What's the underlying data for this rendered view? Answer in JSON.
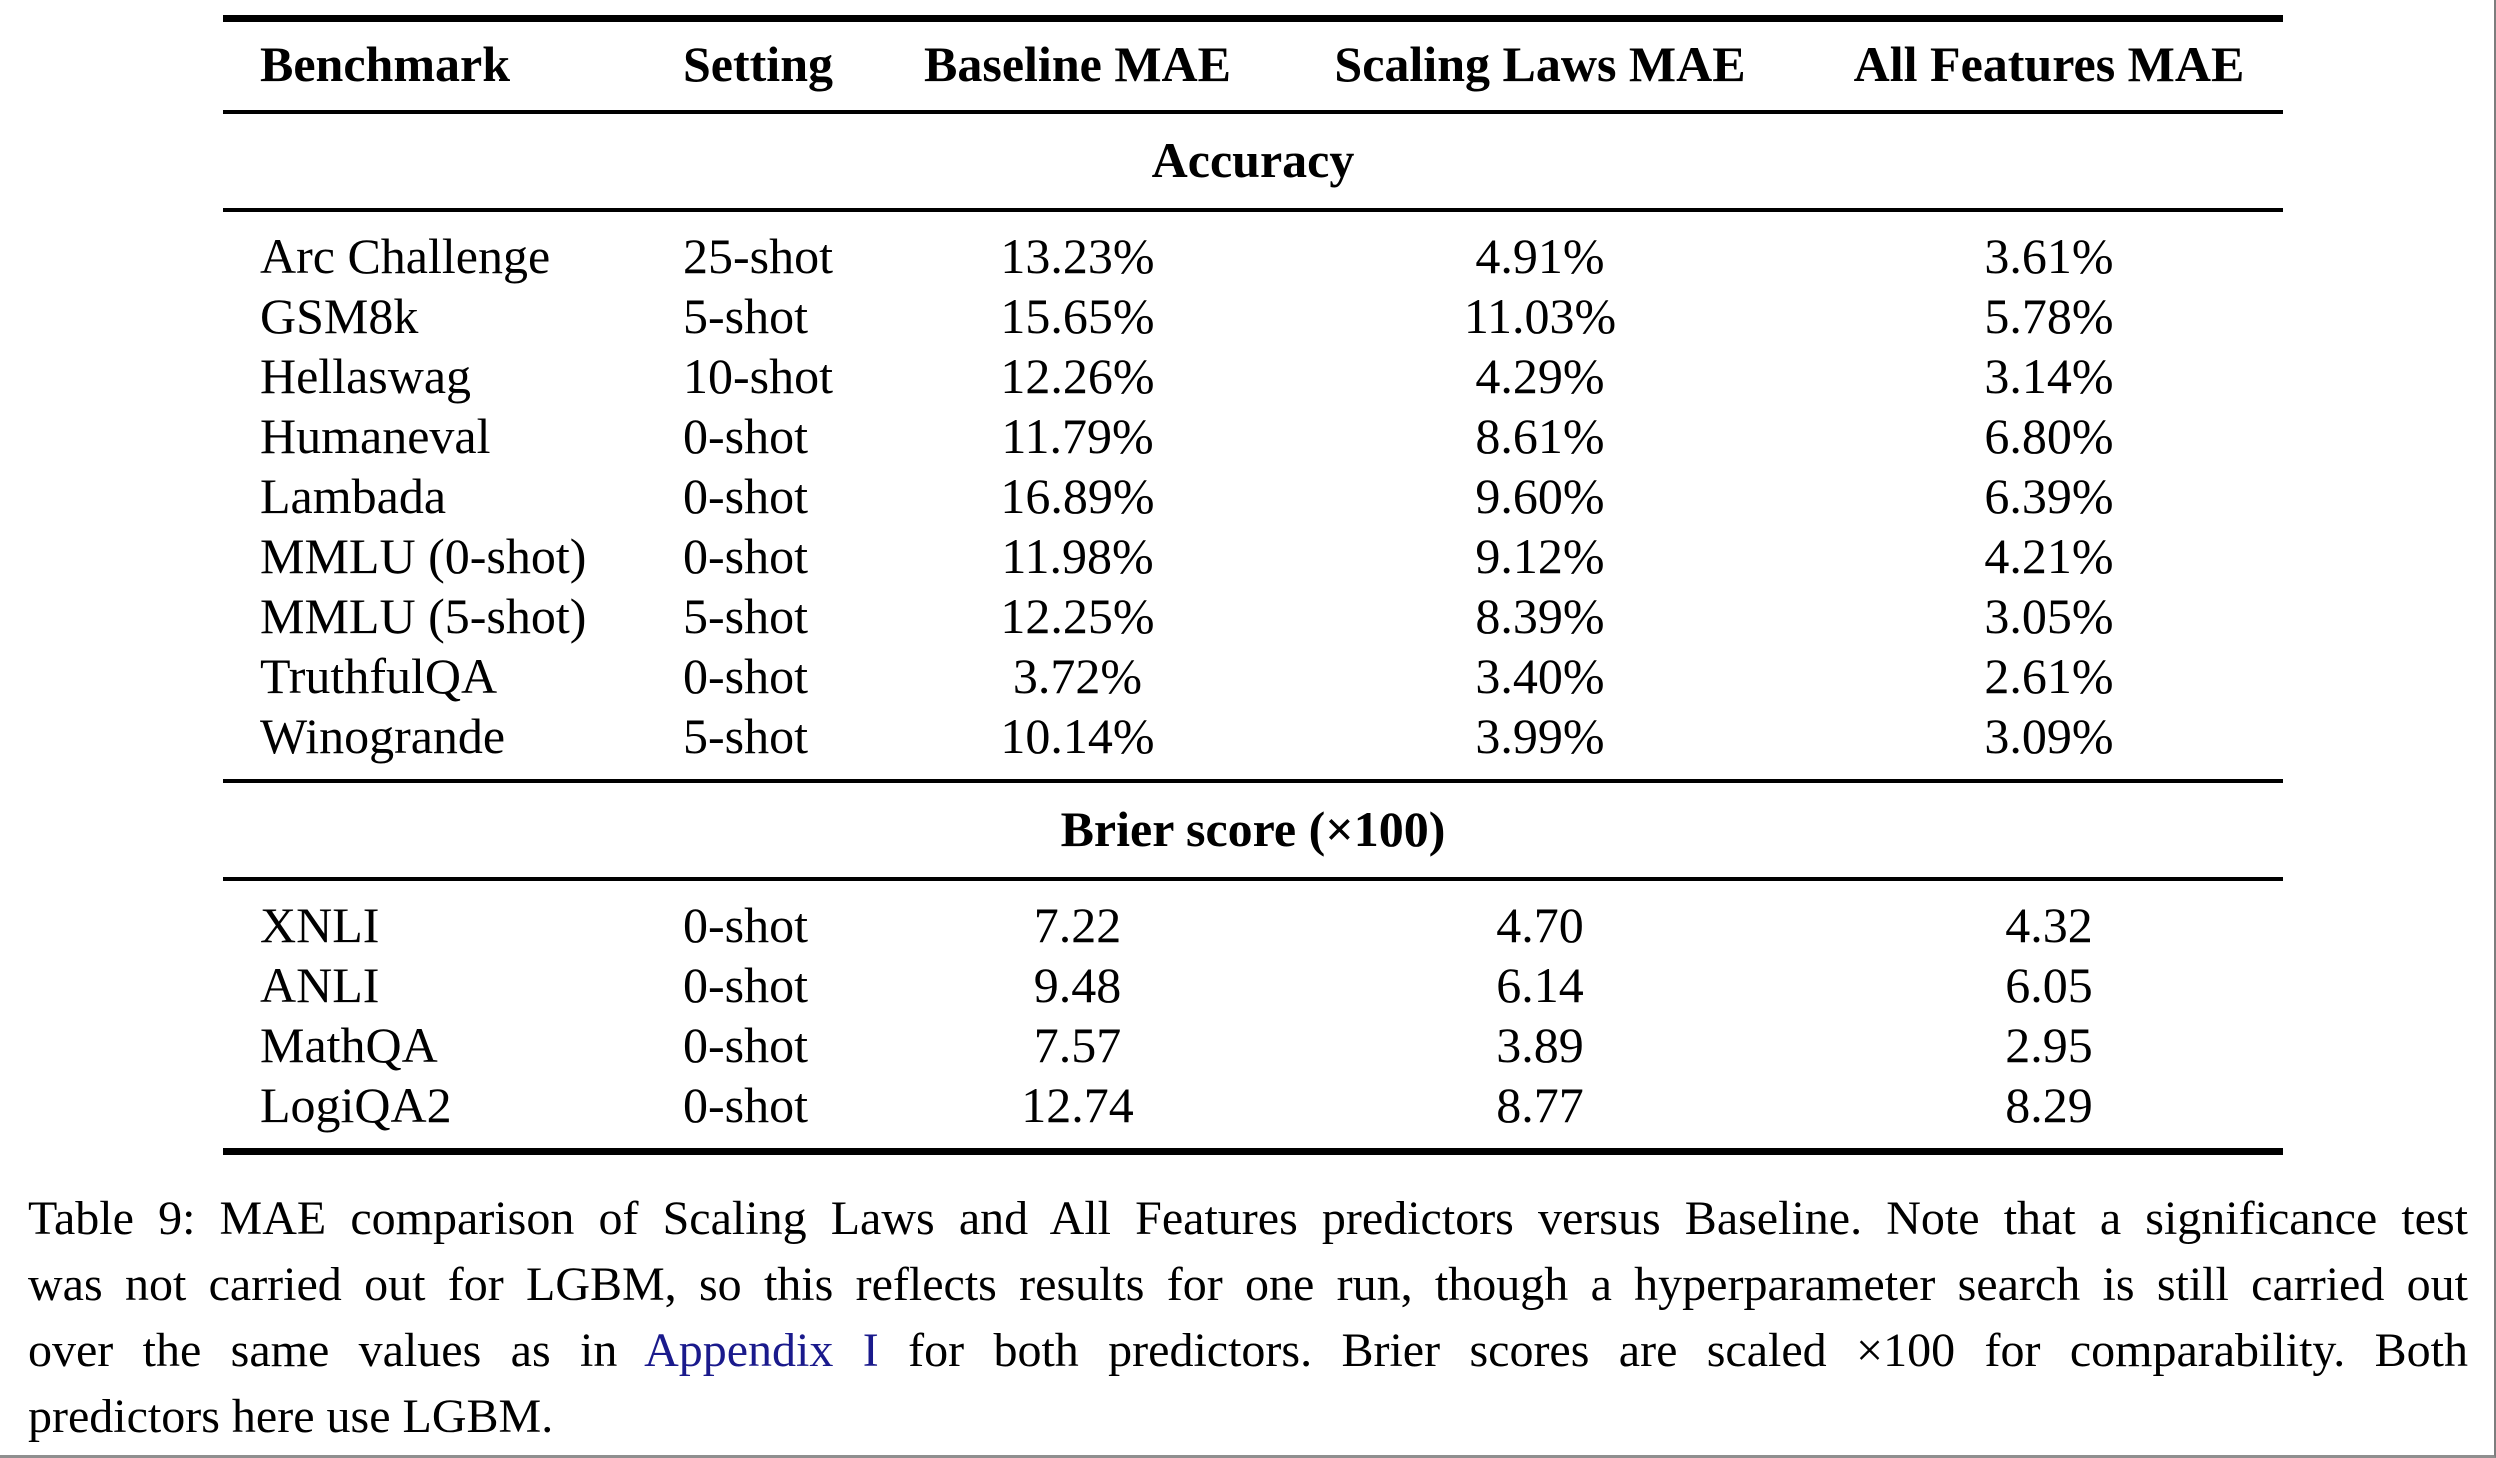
{
  "table": {
    "columns": [
      "Benchmark",
      "Setting",
      "Baseline MAE",
      "Scaling Laws MAE",
      "All Features MAE"
    ],
    "sections": [
      {
        "title": "Accuracy",
        "rows": [
          [
            "Arc Challenge",
            "25-shot",
            "13.23%",
            "4.91%",
            "3.61%"
          ],
          [
            "GSM8k",
            "5-shot",
            "15.65%",
            "11.03%",
            "5.78%"
          ],
          [
            "Hellaswag",
            "10-shot",
            "12.26%",
            "4.29%",
            "3.14%"
          ],
          [
            "Humaneval",
            "0-shot",
            "11.79%",
            "8.61%",
            "6.80%"
          ],
          [
            "Lambada",
            "0-shot",
            "16.89%",
            "9.60%",
            "6.39%"
          ],
          [
            "MMLU (0-shot)",
            "0-shot",
            "11.98%",
            "9.12%",
            "4.21%"
          ],
          [
            "MMLU (5-shot)",
            "5-shot",
            "12.25%",
            "8.39%",
            "3.05%"
          ],
          [
            "TruthfulQA",
            "0-shot",
            "3.72%",
            "3.40%",
            "2.61%"
          ],
          [
            "Winogrande",
            "5-shot",
            "10.14%",
            "3.99%",
            "3.09%"
          ]
        ]
      },
      {
        "title": "Brier score (×100)",
        "rows": [
          [
            "XNLI",
            "0-shot",
            "7.22",
            "4.70",
            "4.32"
          ],
          [
            "ANLI",
            "0-shot",
            "9.48",
            "6.14",
            "6.05"
          ],
          [
            "MathQA",
            "0-shot",
            "7.57",
            "3.89",
            "2.95"
          ],
          [
            "LogiQA2",
            "0-shot",
            "12.74",
            "8.77",
            "8.29"
          ]
        ]
      }
    ]
  },
  "caption": {
    "line1": "Table 9: MAE comparison of Scaling Laws and All Features predictors versus Baseline. Note that a significance test",
    "line2": "was not carried out for LGBM, so this reflects results for one run, though a hyperparameter search is still carried out",
    "line3_before": "over the same values as in ",
    "line3_link": "Appendix I",
    "line3_after": " for both predictors. Brier scores are scaled ×100 for comparability. Both",
    "line4": "predictors here use LGBM."
  },
  "colors": {
    "link": "#1a1a8c"
  }
}
